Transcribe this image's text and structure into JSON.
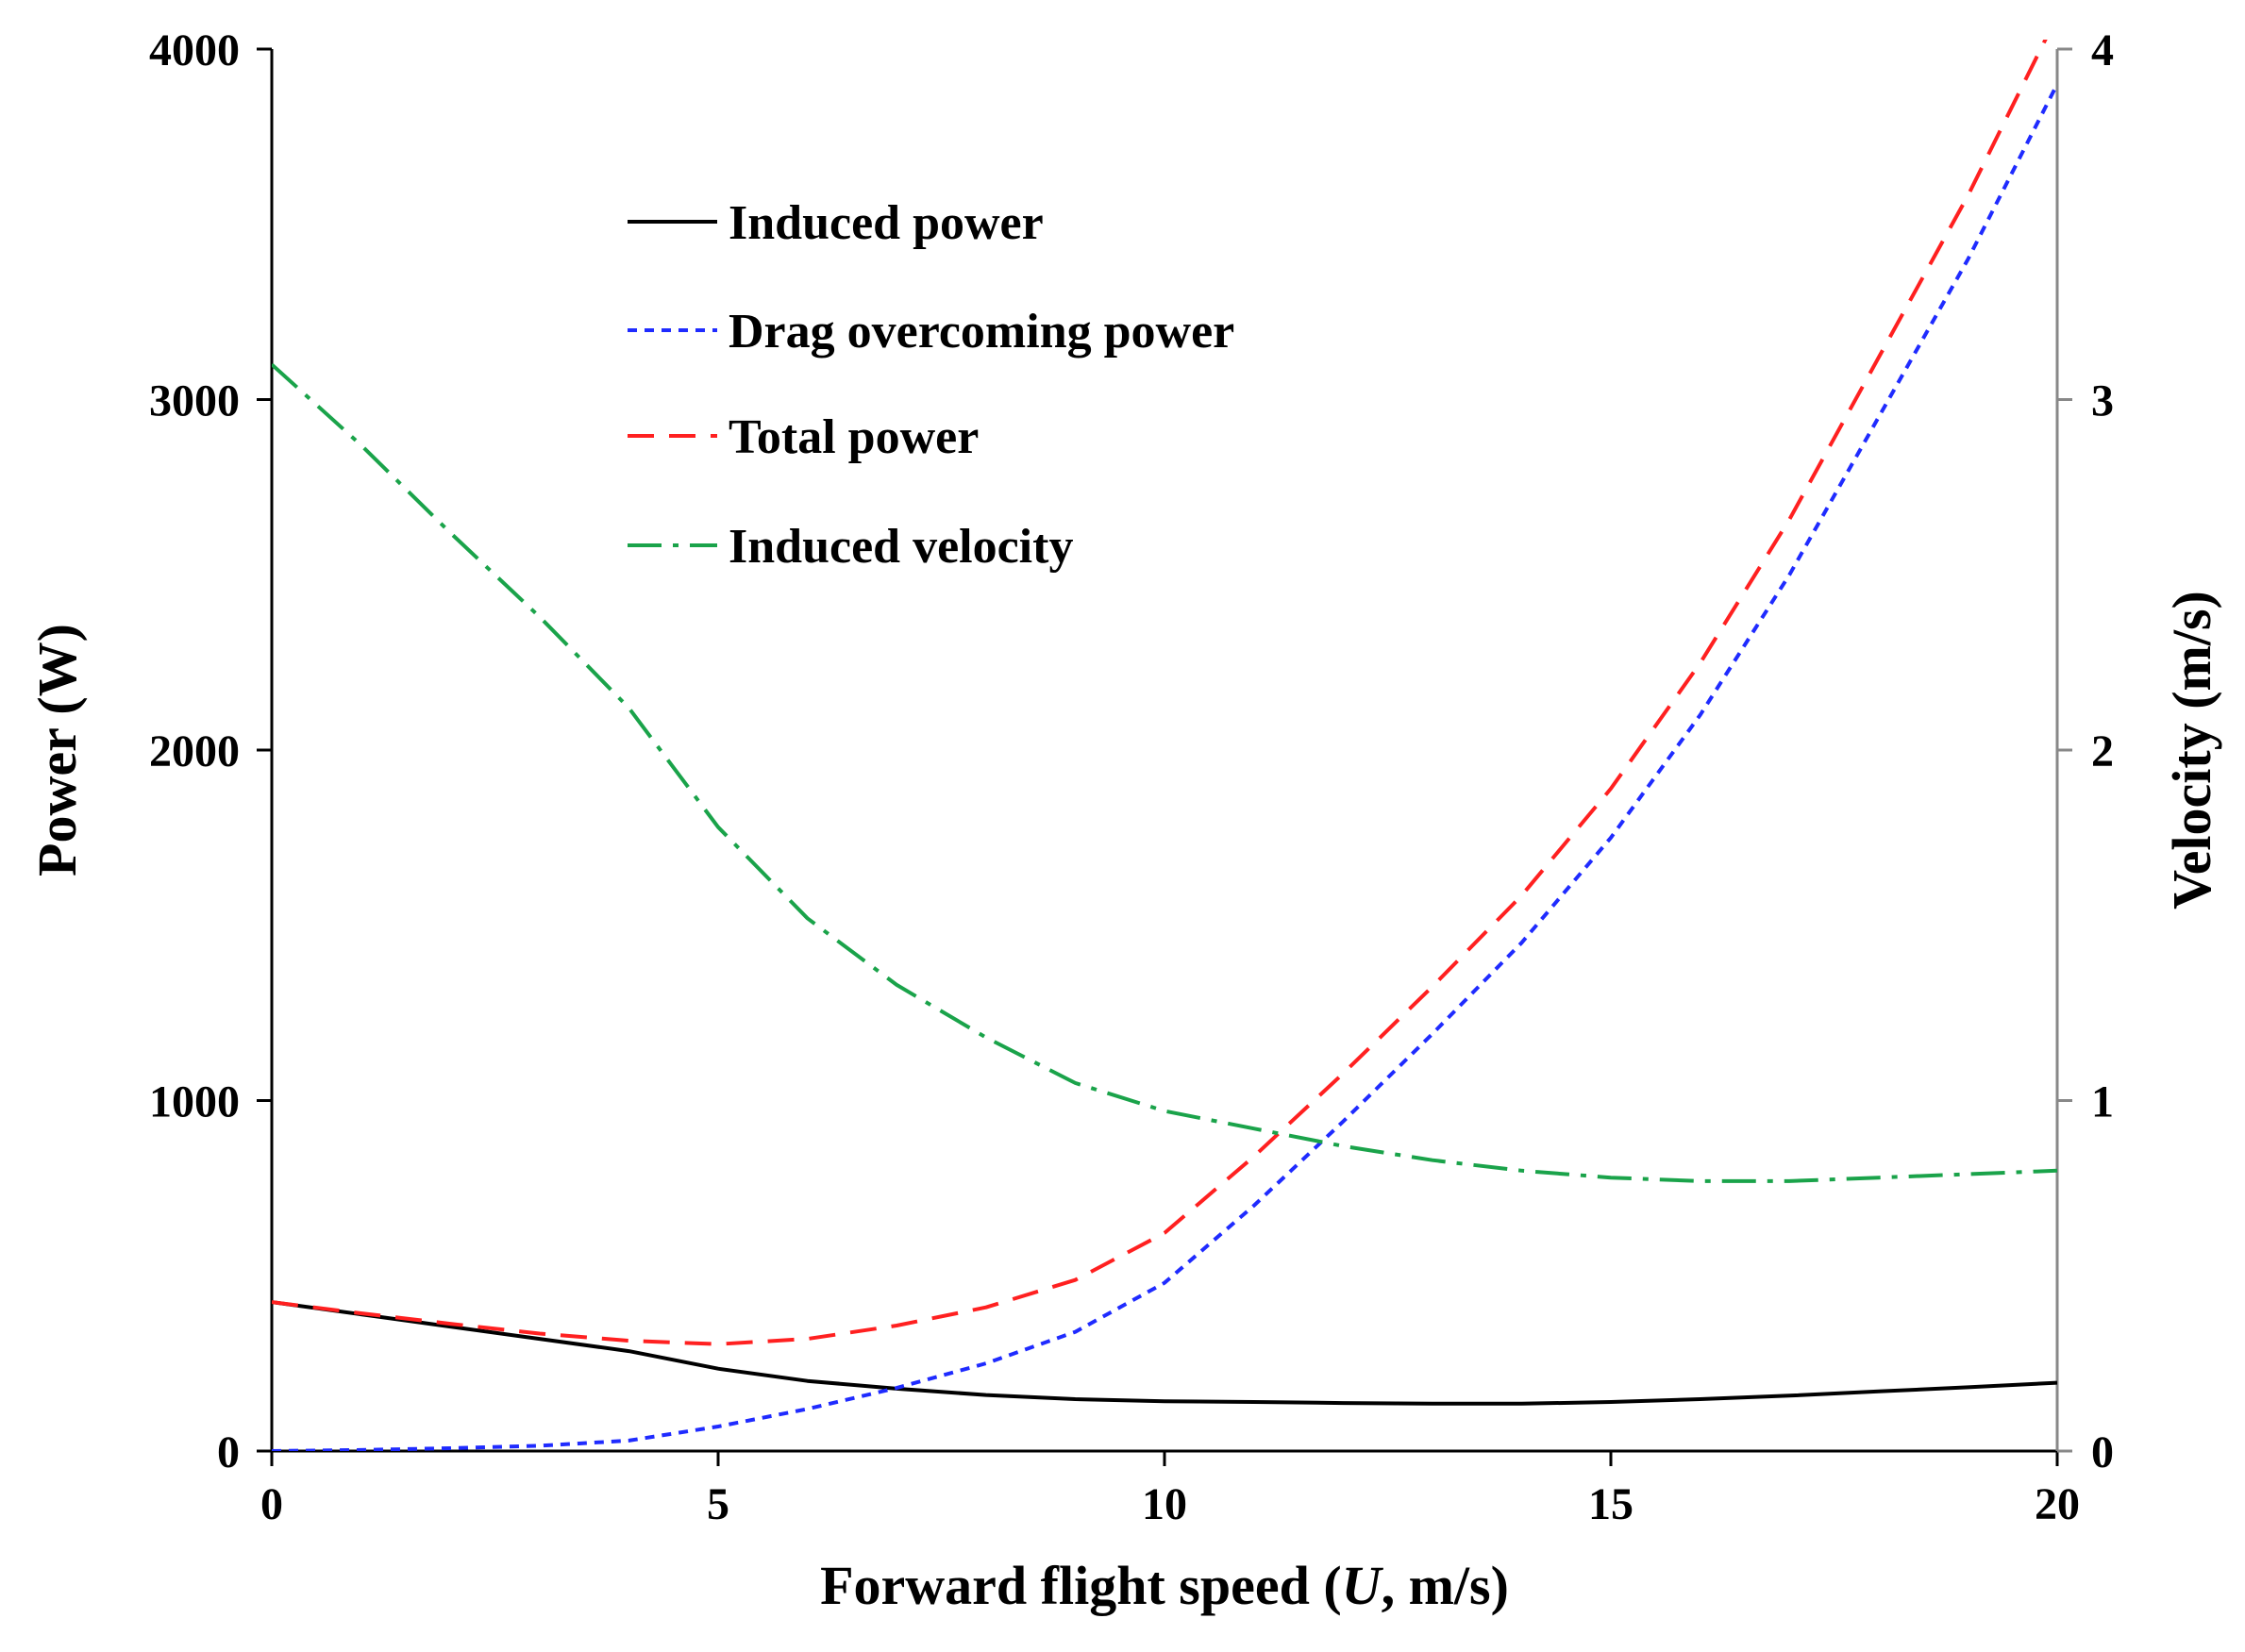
{
  "chart_data": {
    "type": "line",
    "title": "",
    "xlabel_parts": [
      "Forward flight speed (",
      "U",
      ", m/s)"
    ],
    "ylabel_left": "Power (W)",
    "ylabel_right": "Velocity (m/s)",
    "xlim": [
      0,
      20
    ],
    "ylim_left": [
      0,
      4000
    ],
    "ylim_right": [
      0,
      4
    ],
    "x_ticks": [
      "0",
      "5",
      "10",
      "15",
      "20"
    ],
    "y_left_ticks": [
      "0",
      "1000",
      "2000",
      "3000",
      "4000"
    ],
    "y_right_ticks": [
      "0",
      "1",
      "2",
      "3",
      "4"
    ],
    "grid": false,
    "legend_position": "upper-left, inside plot",
    "series": [
      {
        "name": "Induced power",
        "axis": "left",
        "color": "#000000",
        "dash": "solid",
        "x": [
          0,
          1,
          2,
          3,
          4,
          5,
          6,
          7,
          8,
          9,
          10,
          11,
          12,
          13,
          14,
          15,
          16,
          17,
          18,
          19,
          20
        ],
        "y": [
          425,
          390,
          355,
          320,
          285,
          235,
          200,
          178,
          160,
          148,
          142,
          140,
          137,
          135,
          135,
          140,
          148,
          158,
          170,
          182,
          195
        ]
      },
      {
        "name": "Drag overcoming power",
        "axis": "left",
        "color": "#1f2bff",
        "dash": "short",
        "x": [
          0,
          1,
          2,
          3,
          4,
          5,
          6,
          7,
          8,
          9,
          10,
          11,
          12,
          13,
          14,
          15,
          16,
          17,
          18,
          19,
          20
        ],
        "y": [
          0,
          3,
          8,
          15,
          30,
          70,
          120,
          180,
          250,
          340,
          480,
          700,
          940,
          1190,
          1450,
          1750,
          2100,
          2500,
          2950,
          3400,
          3900
        ]
      },
      {
        "name": "Total power",
        "axis": "left",
        "color": "#ff2020",
        "dash": "long",
        "x": [
          0,
          1,
          2,
          3,
          4,
          5,
          6,
          7,
          8,
          9,
          10,
          11,
          12,
          13,
          14,
          15,
          16,
          17,
          18,
          19,
          20
        ],
        "y": [
          425,
          393,
          363,
          335,
          315,
          305,
          320,
          358,
          410,
          488,
          622,
          840,
          1077,
          1325,
          1585,
          1890,
          2248,
          2658,
          3120,
          3582,
          4095
        ]
      },
      {
        "name": "Induced velocity",
        "axis": "right",
        "color": "#1aa34a",
        "dash": "dashdot",
        "x": [
          0,
          1,
          2,
          3,
          4,
          5,
          6,
          7,
          8,
          9,
          10,
          11,
          12,
          13,
          14,
          15,
          16,
          17,
          18,
          19,
          20
        ],
        "y": [
          3.1,
          2.87,
          2.62,
          2.38,
          2.12,
          1.78,
          1.52,
          1.33,
          1.18,
          1.05,
          0.97,
          0.92,
          0.87,
          0.83,
          0.8,
          0.78,
          0.77,
          0.77,
          0.78,
          0.79,
          0.8
        ]
      }
    ]
  }
}
